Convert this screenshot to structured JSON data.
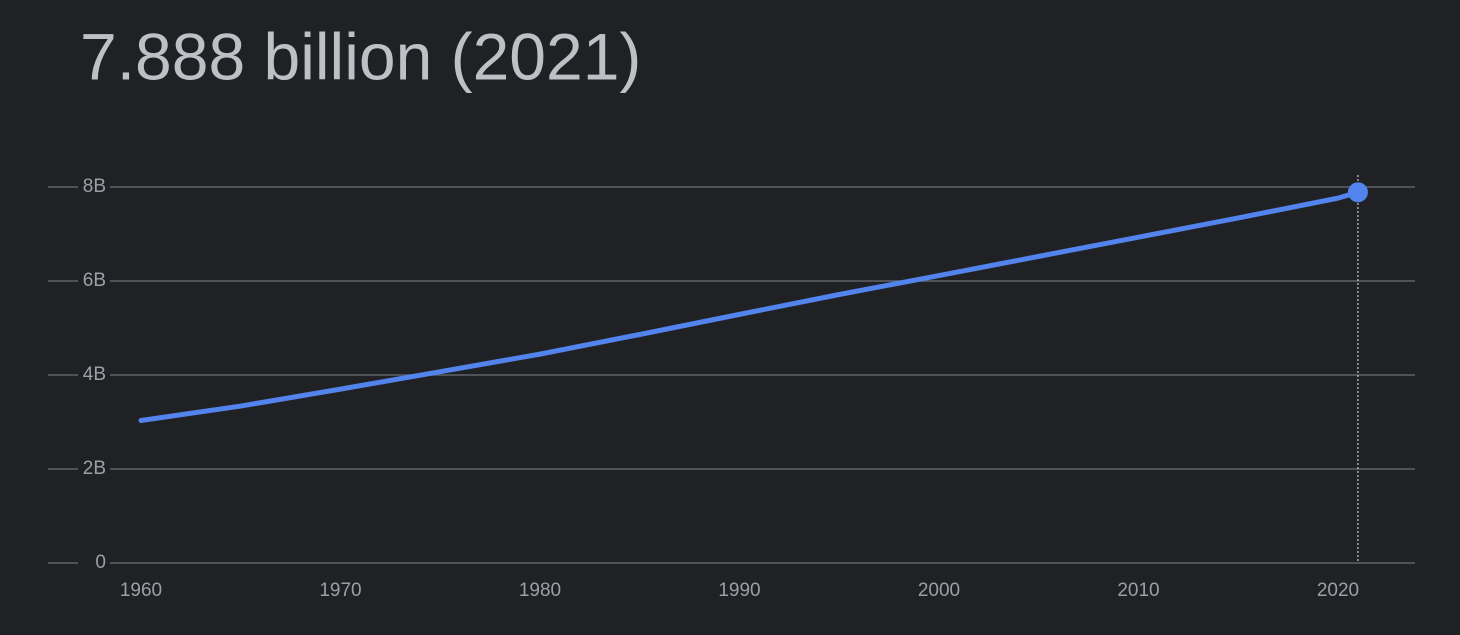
{
  "chart_data": {
    "type": "line",
    "title": "7.888 billion (2021)",
    "x": [
      1960,
      1965,
      1970,
      1975,
      1980,
      1985,
      1990,
      1995,
      2000,
      2005,
      2010,
      2015,
      2020,
      2021
    ],
    "series": [
      {
        "color": "#5383ec",
        "values": [
          3032000000,
          3339000000,
          3700000000,
          4070000000,
          4444000000,
          4862000000,
          5290000000,
          5713000000,
          6115000000,
          6524000000,
          6933000000,
          7341000000,
          7763000000,
          7888000000
        ]
      }
    ],
    "xlim": [
      1955.34,
      2023.86
    ],
    "xticks": [
      1960,
      1970,
      1980,
      1990,
      2000,
      2010,
      2020
    ],
    "ylim": [
      0,
      8000000000
    ],
    "yticks": [
      0,
      {
        "value": 2000000000,
        "label": "2B"
      },
      {
        "value": 4000000000,
        "label": "4B"
      },
      {
        "value": 6000000000,
        "label": "6B"
      },
      {
        "value": 8000000000,
        "label": "8B"
      }
    ],
    "grid": true
  }
}
